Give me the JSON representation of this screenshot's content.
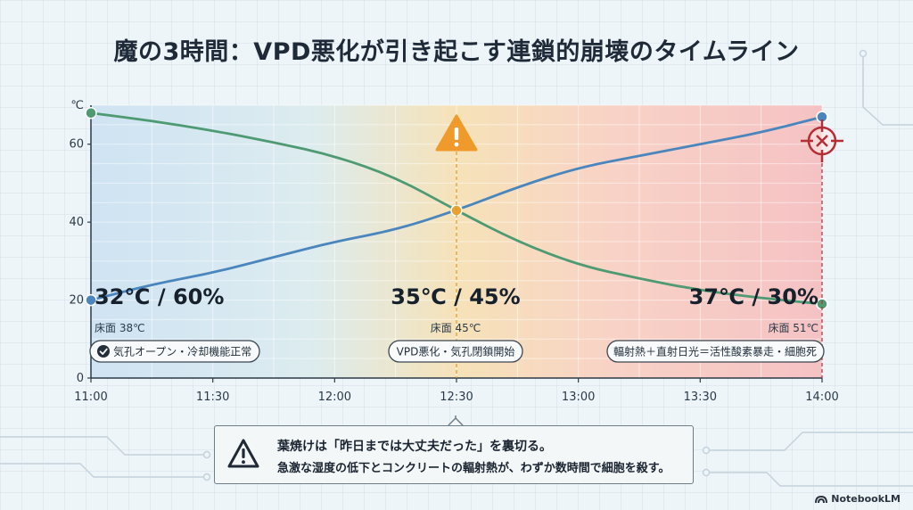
{
  "title": "魔の3時間：VPD悪化が引き起こす連鎖的崩壊のタイムライン",
  "chart_data": {
    "type": "line",
    "ylabel": "℃",
    "xlabel": "",
    "ylim": [
      0,
      70
    ],
    "yticks": [
      0,
      20,
      40,
      60
    ],
    "x_ticks": [
      "11:00",
      "11:30",
      "12:00",
      "12:30",
      "13:00",
      "13:30",
      "14:00"
    ],
    "grid": true,
    "series": [
      {
        "name": "",
        "color": "#4a86bd",
        "points": [
          {
            "x": "11:00",
            "y": 20
          },
          {
            "x": "11:15",
            "y": 24
          },
          {
            "x": "11:30",
            "y": 27
          },
          {
            "x": "11:45",
            "y": 31
          },
          {
            "x": "12:00",
            "y": 35
          },
          {
            "x": "12:15",
            "y": 38
          },
          {
            "x": "12:30",
            "y": 43
          },
          {
            "x": "12:45",
            "y": 49
          },
          {
            "x": "13:00",
            "y": 54
          },
          {
            "x": "13:15",
            "y": 57
          },
          {
            "x": "13:30",
            "y": 60
          },
          {
            "x": "13:45",
            "y": 63
          },
          {
            "x": "14:00",
            "y": 67
          }
        ]
      },
      {
        "name": "",
        "color": "#4e9a72",
        "points": [
          {
            "x": "11:00",
            "y": 68
          },
          {
            "x": "11:15",
            "y": 66
          },
          {
            "x": "11:30",
            "y": 63.5
          },
          {
            "x": "11:45",
            "y": 60.5
          },
          {
            "x": "12:00",
            "y": 57
          },
          {
            "x": "12:15",
            "y": 51.5
          },
          {
            "x": "12:30",
            "y": 43
          },
          {
            "x": "12:45",
            "y": 35
          },
          {
            "x": "13:00",
            "y": 29
          },
          {
            "x": "13:15",
            "y": 25.5
          },
          {
            "x": "13:30",
            "y": 22.5
          },
          {
            "x": "13:45",
            "y": 20.5
          },
          {
            "x": "14:00",
            "y": 19
          }
        ]
      }
    ],
    "annotations": [
      {
        "x": "11:00",
        "label": "32℃ / 60%",
        "floor": "床面 38℃",
        "status": "気孔オープン・冷却機能正常",
        "status_icon": "check-circle-icon"
      },
      {
        "x": "12:30",
        "label": "35℃ / 45%",
        "floor": "床面 45℃",
        "status": "VPD悪化・気孔閉鎖開始",
        "marker_icon": "warning-triangle-icon"
      },
      {
        "x": "14:00",
        "label": "37℃ / 30%",
        "floor": "床面 51℃",
        "status": "輻射熱＋直射日光＝活性酸素暴走・細胞死",
        "marker_icon": "crosshair-x-icon"
      }
    ],
    "zone_colors": [
      "#cfe3f3",
      "#f6e2b8",
      "#f5c2c4"
    ]
  },
  "callout": {
    "icon": "warning-triangle-icon",
    "line1": "葉焼けは「昨日までは大丈夫だった」を裏切る。",
    "line2": "急激な湿度の低下とコンクリートの輻射熱が、わずか数時間で細胞を殺す。"
  },
  "brand": {
    "label": "NotebookLM",
    "icon": "notebooklm-logo-icon"
  }
}
